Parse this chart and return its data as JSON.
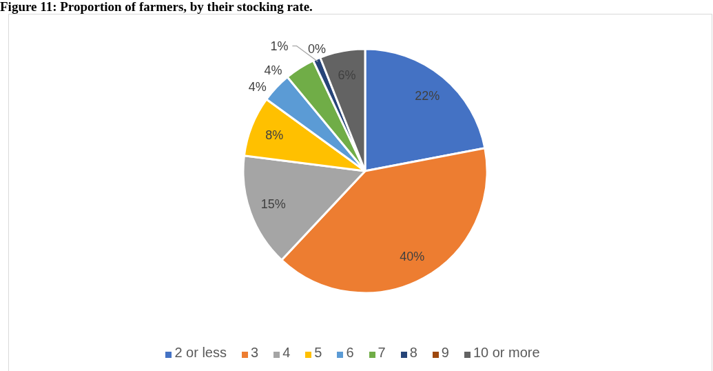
{
  "chart_data": {
    "type": "pie",
    "title": "Figure 11: Proportion of farmers, by their stocking rate.",
    "categories": [
      "2 or less",
      "3",
      "4",
      "5",
      "6",
      "7",
      "8",
      "9",
      "10 or more"
    ],
    "values": [
      22,
      40,
      15,
      8,
      4,
      4,
      1,
      0,
      6
    ],
    "value_labels": [
      "22%",
      "40%",
      "15%",
      "8%",
      "4%",
      "4%",
      "1%",
      "0%",
      "6%"
    ],
    "colors": [
      "#4472c4",
      "#ed7d31",
      "#a5a5a5",
      "#ffc000",
      "#5b9bd5",
      "#70ad47",
      "#264478",
      "#9e480e",
      "#636363"
    ],
    "legend": "bottom"
  }
}
